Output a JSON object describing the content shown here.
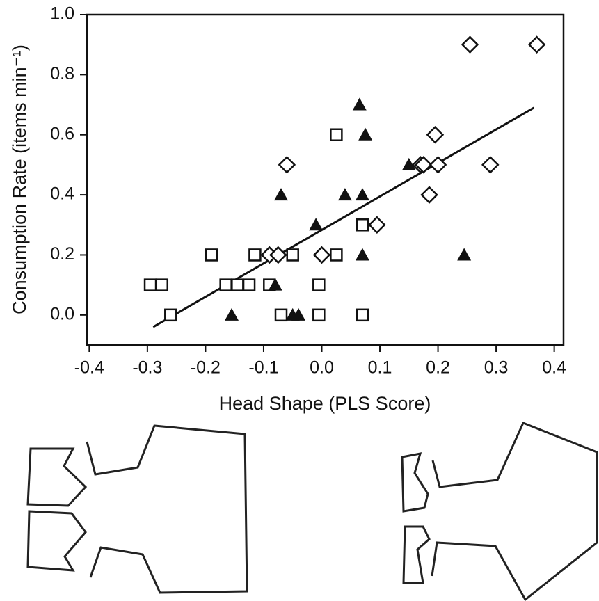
{
  "chart_data": {
    "type": "scatter",
    "xlabel": "Head Shape (PLS Score)",
    "ylabel": "Consumption Rate (items min⁻¹)",
    "xlim": [
      -0.404,
      0.416
    ],
    "ylim": [
      -0.1,
      1.0
    ],
    "xticks": [
      -0.4,
      -0.3,
      -0.2,
      -0.1,
      {
        "value": 0,
        "label": "0.0"
      },
      0.1,
      0.2,
      0.3,
      0.4
    ],
    "yticks": [
      {
        "value": 0,
        "label": "0.0"
      },
      0.2,
      0.4,
      0.6,
      0.8,
      {
        "value": 1,
        "label": "1.0"
      }
    ],
    "series": [
      {
        "marker": "square",
        "color": "#111111",
        "x": [
          -0.295,
          -0.275,
          -0.26,
          -0.19,
          -0.165,
          -0.145,
          -0.125,
          -0.115,
          -0.09,
          -0.07,
          -0.05,
          -0.005,
          -0.005,
          0.025,
          0.025,
          0.07,
          0.07
        ],
        "values": [
          0.1,
          0.1,
          0,
          0.2,
          0.1,
          0.1,
          0.1,
          0.2,
          0.1,
          0,
          0.2,
          0.1,
          0,
          0.2,
          0.6,
          0.3,
          0
        ]
      },
      {
        "marker": "triangle",
        "color": "#111111",
        "x": [
          -0.155,
          -0.08,
          -0.07,
          -0.05,
          -0.04,
          -0.01,
          0.04,
          0.065,
          0.07,
          0.075,
          0.07,
          0.15,
          0.245
        ],
        "values": [
          0,
          0.1,
          0.4,
          0,
          0,
          0.3,
          0.4,
          0.7,
          0.4,
          0.6,
          0.2,
          0.5,
          0.2
        ]
      },
      {
        "marker": "diamond",
        "color": "#111111",
        "x": [
          -0.06,
          -0.09,
          -0.075,
          0,
          0.095,
          0.17,
          0.175,
          0.185,
          0.195,
          0.2,
          0.255,
          0.29,
          0.37
        ],
        "values": [
          0.5,
          0.2,
          0.2,
          0.2,
          0.3,
          0.5,
          0.5,
          0.4,
          0.6,
          0.5,
          0.9,
          0.5,
          0.9
        ]
      }
    ],
    "trendline": {
      "x": [
        -0.29,
        0.365
      ],
      "values": [
        -0.04,
        0.69
      ]
    }
  }
}
